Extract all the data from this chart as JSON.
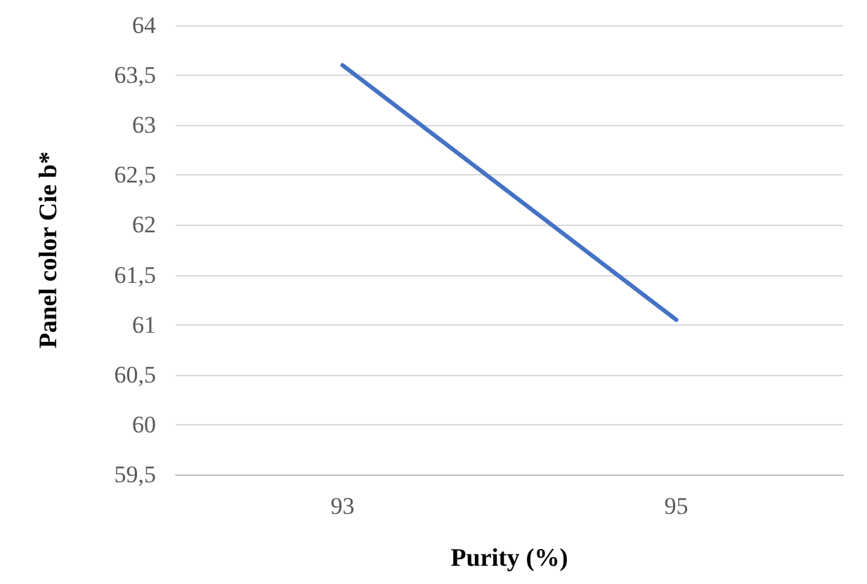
{
  "chart_data": {
    "type": "line",
    "xlabel": "Purity (%)",
    "ylabel": "Panel color Cie b*",
    "categories": [
      "93",
      "95"
    ],
    "series": [
      {
        "color": "#4472c4",
        "values": [
          63.6,
          61.05
        ]
      }
    ],
    "ylim": [
      59.5,
      64
    ],
    "yticks": [
      {
        "value": 59.5,
        "label": "59,5"
      },
      60,
      {
        "value": 60.5,
        "label": "60,5"
      },
      61,
      {
        "value": 61.5,
        "label": "61,5"
      },
      62,
      {
        "value": 62.5,
        "label": "62,5"
      },
      63,
      {
        "value": 63.5,
        "label": "63,5"
      },
      64
    ],
    "grid": "y",
    "marker": "none",
    "line_style": "solid"
  }
}
